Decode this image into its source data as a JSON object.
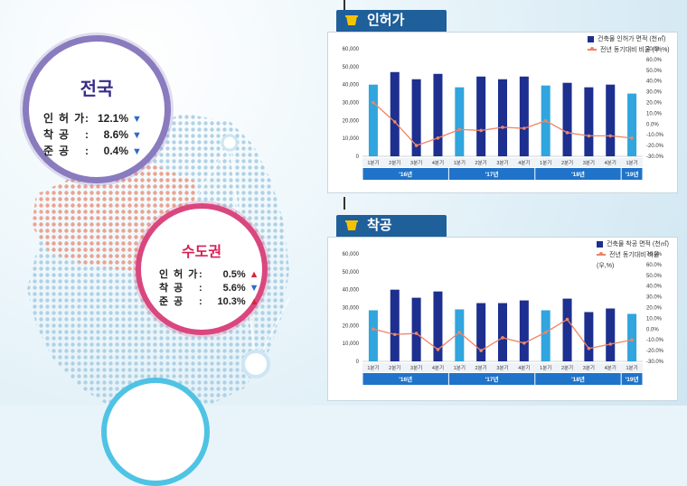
{
  "map_stats": {
    "national": {
      "title": "전국",
      "rows": [
        {
          "label": "인허가",
          "colon": ":",
          "value": "12.1%",
          "direction": "down"
        },
        {
          "label": "착공",
          "colon": ":",
          "value": "8.6%",
          "direction": "down"
        },
        {
          "label": "준공",
          "colon": ":",
          "value": "0.4%",
          "direction": "down"
        }
      ]
    },
    "capital": {
      "title": "수도권",
      "rows": [
        {
          "label": "인허가",
          "colon": ":",
          "value": "0.5%",
          "direction": "up"
        },
        {
          "label": "착공",
          "colon": ":",
          "value": "5.6%",
          "direction": "down"
        },
        {
          "label": "준공",
          "colon": ":",
          "value": "10.3%",
          "direction": "up"
        }
      ]
    }
  },
  "chart_data": [
    {
      "type": "bar",
      "panel_title": "인허가",
      "legend": [
        "건축물 인허가 면적 (천㎡)",
        "전년 동기대비 비율 (우,%)"
      ],
      "categories": [
        "1분기",
        "2분기",
        "3분기",
        "4분기",
        "1분기",
        "2분기",
        "3분기",
        "4분기",
        "1분기",
        "2분기",
        "3분기",
        "4분기",
        "1분기"
      ],
      "years": [
        {
          "label": "'16년",
          "span": 4
        },
        {
          "label": "'17년",
          "span": 4
        },
        {
          "label": "'18년",
          "span": 4
        },
        {
          "label": "'19년",
          "span": 1
        }
      ],
      "series": [
        {
          "name": "건축물 인허가 면적 (천㎡)",
          "axis": "left",
          "values": [
            40000,
            47000,
            43000,
            46000,
            38500,
            44500,
            43000,
            44500,
            39500,
            41000,
            38500,
            40000,
            35000
          ]
        },
        {
          "name": "전년 동기대비 비율 (우,%)",
          "axis": "right",
          "values": [
            20,
            2,
            -20,
            -13,
            -5,
            -6,
            -3,
            -4,
            3,
            -8,
            -11,
            -11,
            -13
          ]
        }
      ],
      "ylim_left": [
        0,
        60000
      ],
      "yticks_left": [
        "0",
        "10,000",
        "20,000",
        "30,000",
        "40,000",
        "50,000",
        "60,000"
      ],
      "ylim_right": [
        -30,
        70
      ],
      "yticks_right": [
        "-30.0%",
        "-20.0%",
        "-10.0%",
        "0.0%",
        "10.0%",
        "20.0%",
        "30.0%",
        "40.0%",
        "50.0%",
        "60.0%",
        "70.0%"
      ],
      "colors": {
        "bar_first": "#31a5de",
        "bar_rest": "#1d2f8f",
        "line": "#f08466",
        "year_band": "#1f73c9"
      }
    },
    {
      "type": "bar",
      "panel_title": "착공",
      "legend": [
        "건축물 착공 면적 (천㎡)",
        "전년 동기대비 비율 (우,%)"
      ],
      "categories": [
        "1분기",
        "2분기",
        "3분기",
        "4분기",
        "1분기",
        "2분기",
        "3분기",
        "4분기",
        "1분기",
        "2분기",
        "3분기",
        "4분기",
        "1분기"
      ],
      "years": [
        {
          "label": "'16년",
          "span": 4
        },
        {
          "label": "'17년",
          "span": 4
        },
        {
          "label": "'18년",
          "span": 4
        },
        {
          "label": "'19년",
          "span": 1
        }
      ],
      "series": [
        {
          "name": "건축물 착공 면적 (천㎡)",
          "axis": "left",
          "values": [
            28500,
            40000,
            35500,
            39000,
            29000,
            32500,
            32500,
            34000,
            28500,
            35000,
            27500,
            29500,
            26500
          ]
        },
        {
          "name": "전년 동기대비 비율 (우,%)",
          "axis": "right",
          "values": [
            0,
            -5,
            -4,
            -19,
            -3,
            -20,
            -8,
            -13,
            -3,
            9,
            -18,
            -14,
            -10
          ]
        }
      ],
      "ylim_left": [
        0,
        60000
      ],
      "yticks_left": [
        "0",
        "10,000",
        "20,000",
        "30,000",
        "40,000",
        "50,000",
        "60,000"
      ],
      "ylim_right": [
        -30,
        70
      ],
      "yticks_right": [
        "-30.0%",
        "-20.0%",
        "-10.0%",
        "0.0%",
        "10.0%",
        "20.0%",
        "30.0%",
        "40.0%",
        "50.0%",
        "60.0%",
        "70.0%"
      ],
      "colors": {
        "bar_first": "#31a5de",
        "bar_rest": "#1d2f8f",
        "line": "#f08466",
        "year_band": "#1f73c9"
      }
    }
  ]
}
